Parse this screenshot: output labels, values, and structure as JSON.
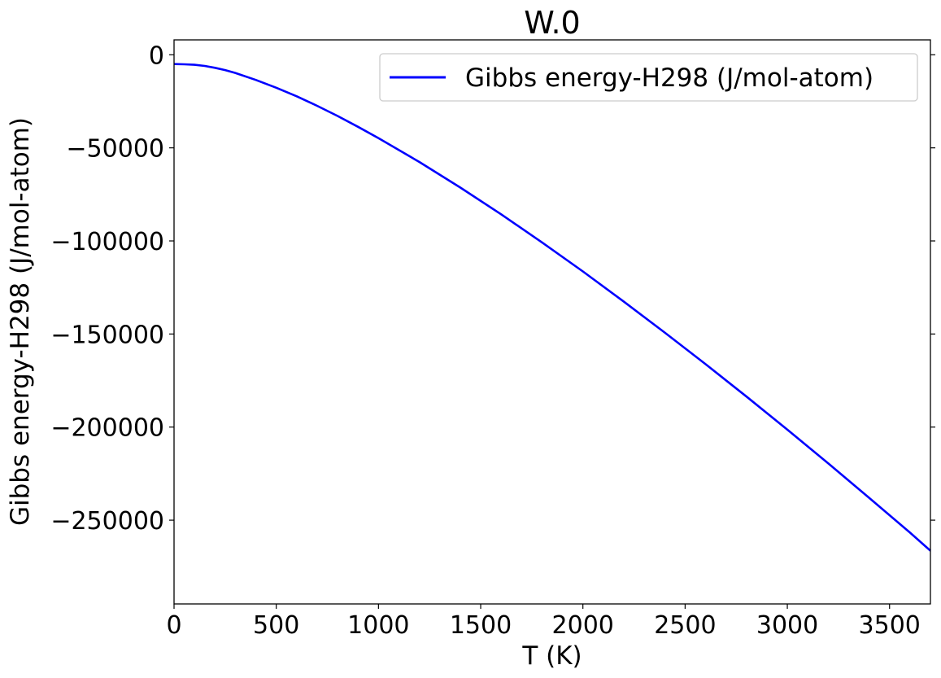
{
  "chart_data": {
    "type": "line",
    "title": "W.0",
    "xlabel": "T (K)",
    "ylabel": "Gibbs energy-H298 (J/mol-atom)",
    "xlim": [
      0,
      3700
    ],
    "ylim": [
      -295000,
      8000
    ],
    "xticks": [
      0,
      500,
      1000,
      1500,
      2000,
      2500,
      3000,
      3500
    ],
    "xtick_labels": [
      "0",
      "500",
      "1000",
      "1500",
      "2000",
      "2500",
      "3000",
      "3500"
    ],
    "yticks": [
      0,
      -50000,
      -100000,
      -150000,
      -200000,
      -250000
    ],
    "ytick_labels": [
      "0",
      "−50000",
      "−100000",
      "−150000",
      "−200000",
      "−250000"
    ],
    "grid": false,
    "legend": {
      "location": "upper right"
    },
    "series": [
      {
        "name": "Gibbs energy-H298 (J/mol-atom)",
        "color": "#0000ff",
        "x": [
          1,
          50,
          100,
          150,
          200,
          250,
          298,
          400,
          500,
          600,
          700,
          800,
          900,
          1000,
          1200,
          1400,
          1600,
          1800,
          2000,
          2200,
          2400,
          2600,
          2800,
          3000,
          3200,
          3400,
          3600,
          3700
        ],
        "y": [
          -5000,
          -5100,
          -5400,
          -6000,
          -7000,
          -8200,
          -9700,
          -13500,
          -17700,
          -22300,
          -27400,
          -32900,
          -38700,
          -44800,
          -57600,
          -71300,
          -85700,
          -100800,
          -116400,
          -132600,
          -149200,
          -166200,
          -183600,
          -201400,
          -219500,
          -238000,
          -256700,
          -266400
        ]
      }
    ]
  }
}
